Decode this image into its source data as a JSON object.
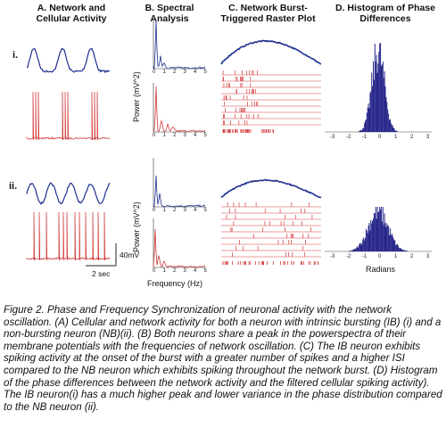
{
  "headers": {
    "a": "A. Network and\nCellular Activity",
    "b": "B. Spectral\nAnalysis",
    "c": "C. Network Burst-\nTriggered Raster Plot",
    "d": "D. Histogram of Phase\nDifferences"
  },
  "rows": [
    "i.",
    "ii."
  ],
  "labels": {
    "power1": "Power (mV^2)",
    "power2": "Power (mV^2)",
    "freq": "Frequency (Hz)",
    "scale_v": "40mV",
    "scale_t": "2 sec",
    "radians": "Radians"
  },
  "freq_ticks": [
    "0",
    "1",
    "2",
    "3",
    "4",
    "5"
  ],
  "phase_ticks": [
    "-3",
    "-2",
    "-1",
    "0",
    "1",
    "2",
    "3"
  ],
  "colors": {
    "network": "#1f2f8f",
    "cell": "#d23a3a",
    "hist": "#26268a"
  },
  "caption": " Figure 2. Phase and Frequency Synchronization of neuronal activity with the network oscillation. (A) Cellular and network activity for both a neuron with intrinsic bursting (IB) (i) and a non-bursting neuron (NB)(ii). (B) Both neurons share a peak in the powerspectra of their membrane potentials with the frequencies of network oscillation. (C) The IB neuron exhibits spiking activity at the onset of the burst with a greater number of spikes and a higher ISI compared to the NB neuron which exhibits spiking throughout the network burst. (D) Histogram of the phase differences between the network activity and the filtered cellular spiking activity). The IB neuron(i) has a much higher peak and lower variance in the phase distribution compared to the NB neuron (ii)."
}
